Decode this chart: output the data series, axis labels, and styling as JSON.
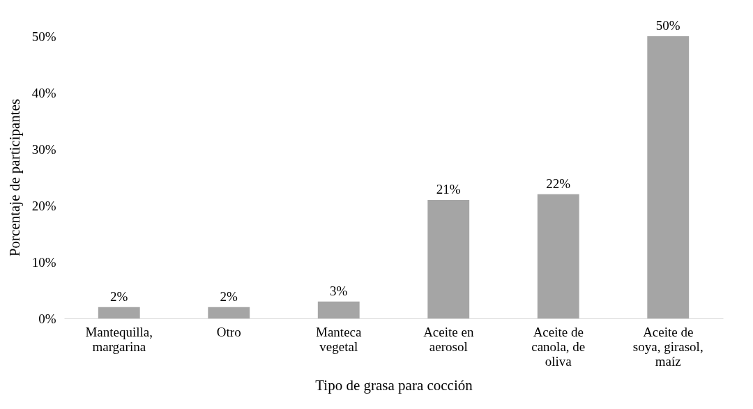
{
  "chart_data": {
    "type": "bar",
    "xlabel": "Tipo de grasa para cocción",
    "ylabel": "Porcentaje de participantes",
    "categories": [
      "Mantequilla, margarina",
      "Otro",
      "Manteca vegetal",
      "Aceite en aerosol",
      "Aceite de canola, de oliva",
      "Aceite de soya, girasol, maíz"
    ],
    "values": [
      2,
      2,
      3,
      21,
      22,
      50
    ],
    "value_labels": [
      "2%",
      "2%",
      "3%",
      "21%",
      "22%",
      "50%"
    ],
    "color": "#a5a5a5",
    "ylim": [
      0,
      50
    ],
    "yticks": [
      {
        "value": 0,
        "label": "0%"
      },
      {
        "value": 10,
        "label": "10%"
      },
      {
        "value": 20,
        "label": "20%"
      },
      {
        "value": 30,
        "label": "30%"
      },
      {
        "value": 40,
        "label": "40%"
      },
      {
        "value": 50,
        "label": "50%"
      }
    ],
    "grid": false
  }
}
